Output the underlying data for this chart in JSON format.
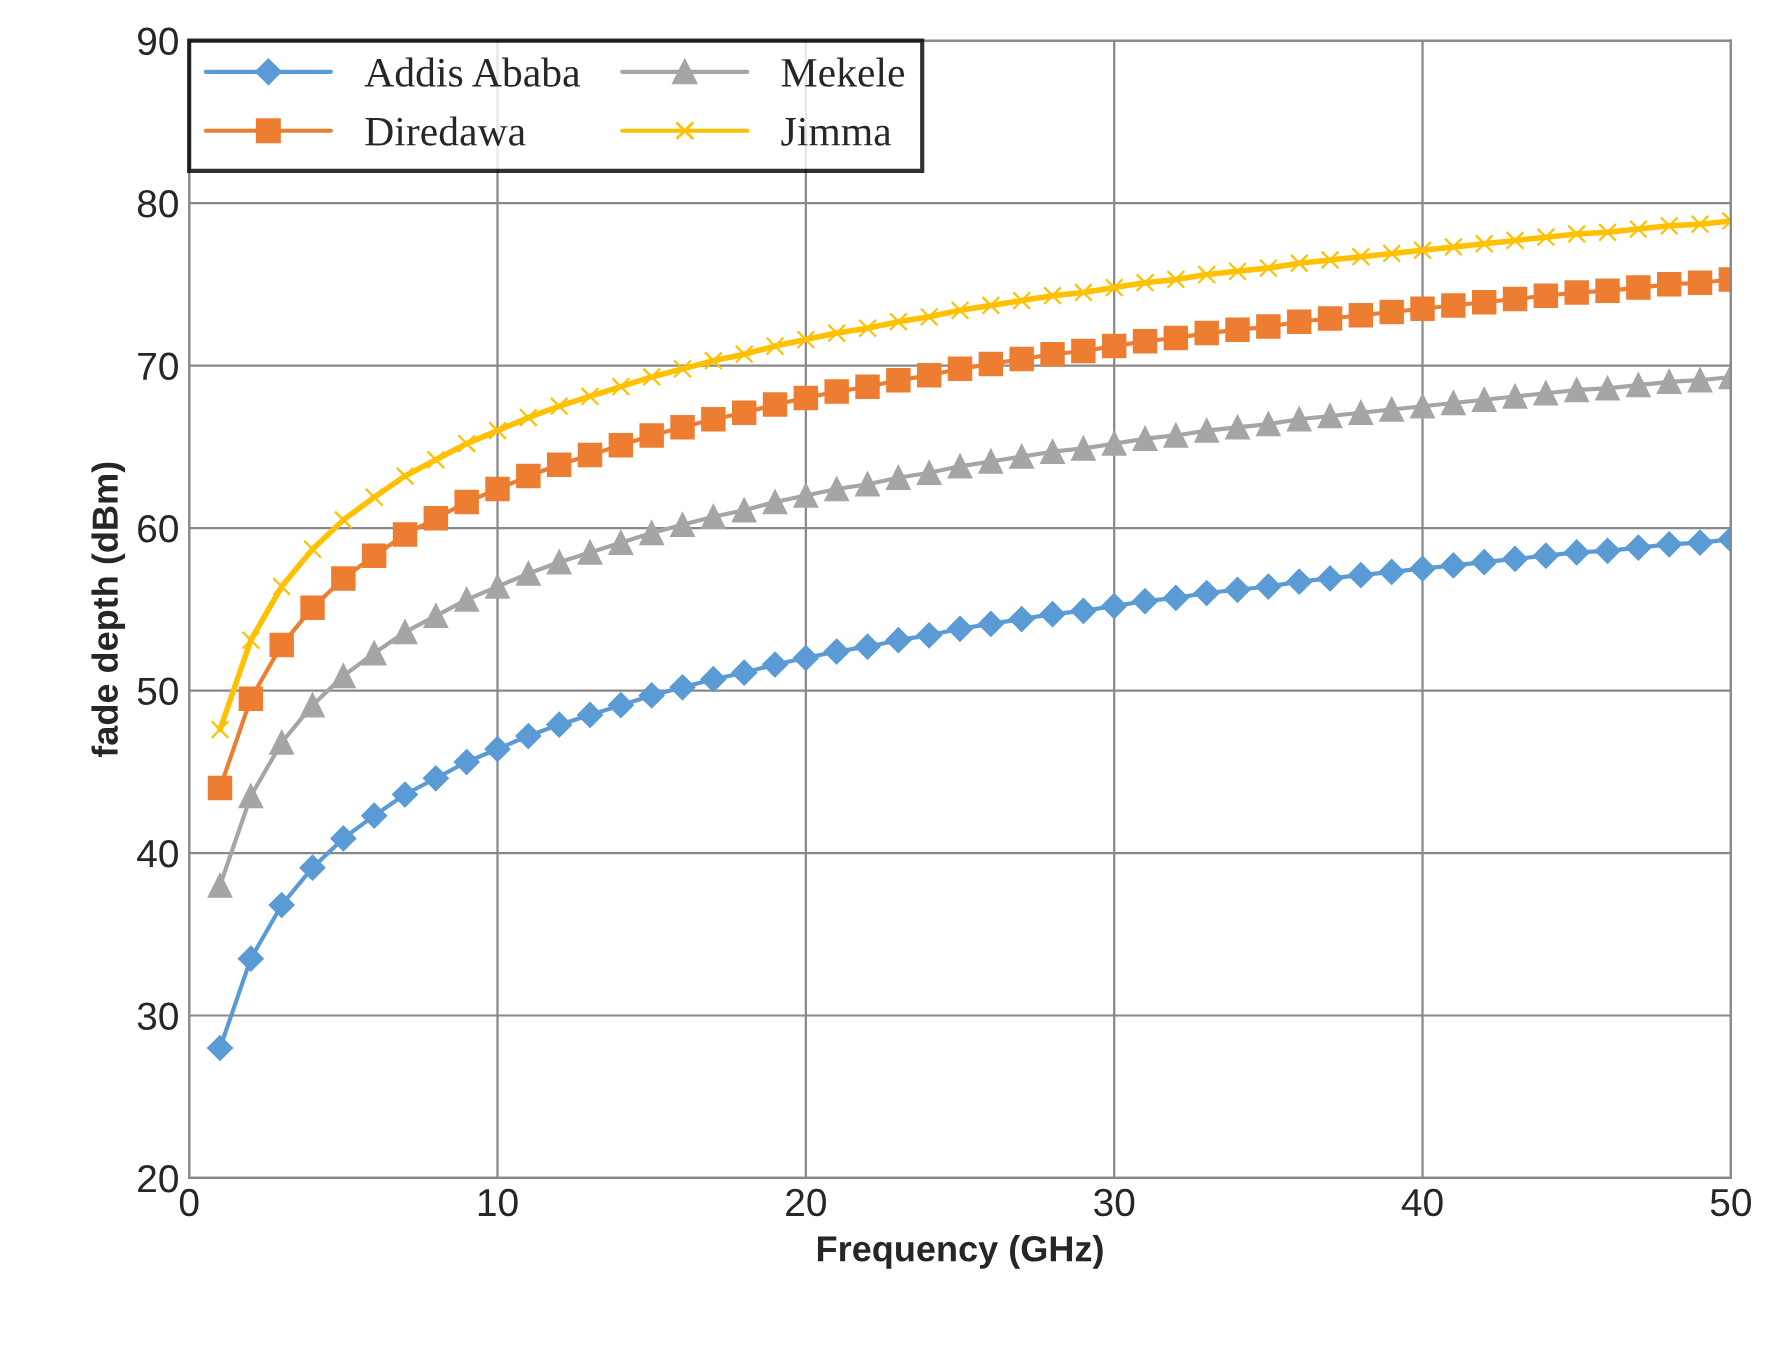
{
  "chart_data": {
    "type": "line",
    "xlabel": "Frequency (GHz)",
    "ylabel": "fade depth (dBm)",
    "x": [
      1,
      2,
      3,
      4,
      5,
      6,
      7,
      8,
      9,
      10,
      11,
      12,
      13,
      14,
      15,
      16,
      17,
      18,
      19,
      20,
      21,
      22,
      23,
      24,
      25,
      26,
      27,
      28,
      29,
      30,
      31,
      32,
      33,
      34,
      35,
      36,
      37,
      38,
      39,
      40,
      41,
      42,
      43,
      44,
      45,
      46,
      47,
      48,
      49,
      50
    ],
    "series": [
      {
        "name": "Addis Ababa",
        "color": "#5b9bd5",
        "marker": "diamond",
        "values": [
          28.0,
          33.5,
          36.8,
          39.1,
          40.9,
          42.3,
          43.6,
          44.6,
          45.6,
          46.4,
          47.2,
          47.9,
          48.5,
          49.1,
          49.7,
          50.2,
          50.7,
          51.1,
          51.6,
          52.0,
          52.4,
          52.7,
          53.1,
          53.4,
          53.8,
          54.1,
          54.4,
          54.7,
          54.9,
          55.2,
          55.5,
          55.7,
          56.0,
          56.2,
          56.4,
          56.7,
          56.9,
          57.1,
          57.3,
          57.5,
          57.7,
          57.9,
          58.1,
          58.3,
          58.5,
          58.6,
          58.8,
          59.0,
          59.1,
          59.3
        ]
      },
      {
        "name": "Diredawa",
        "color": "#ed7d31",
        "marker": "square",
        "values": [
          44.0,
          49.5,
          52.8,
          55.1,
          56.9,
          58.3,
          59.6,
          60.6,
          61.6,
          62.4,
          63.2,
          63.9,
          64.5,
          65.1,
          65.7,
          66.2,
          66.7,
          67.1,
          67.6,
          68.0,
          68.4,
          68.7,
          69.1,
          69.4,
          69.8,
          70.1,
          70.4,
          70.7,
          70.9,
          71.2,
          71.5,
          71.7,
          72.0,
          72.2,
          72.4,
          72.7,
          72.9,
          73.1,
          73.3,
          73.5,
          73.7,
          73.9,
          74.1,
          74.3,
          74.5,
          74.6,
          74.8,
          75.0,
          75.1,
          75.3
        ]
      },
      {
        "name": "Mekele",
        "color": "#a5a5a5",
        "marker": "triangle",
        "values": [
          38.0,
          43.5,
          46.8,
          49.1,
          50.9,
          52.3,
          53.6,
          54.6,
          55.6,
          56.4,
          57.2,
          57.9,
          58.5,
          59.1,
          59.7,
          60.2,
          60.7,
          61.1,
          61.6,
          62.0,
          62.4,
          62.7,
          63.1,
          63.4,
          63.8,
          64.1,
          64.4,
          64.7,
          64.9,
          65.2,
          65.5,
          65.7,
          66.0,
          66.2,
          66.4,
          66.7,
          66.9,
          67.1,
          67.3,
          67.5,
          67.7,
          67.9,
          68.1,
          68.3,
          68.5,
          68.6,
          68.8,
          69.0,
          69.1,
          69.3
        ]
      },
      {
        "name": "Jimma",
        "color": "#ffc000",
        "marker": "cross",
        "values": [
          47.6,
          53.1,
          56.4,
          58.7,
          60.5,
          61.9,
          63.2,
          64.2,
          65.2,
          66.0,
          66.8,
          67.5,
          68.1,
          68.7,
          69.3,
          69.8,
          70.3,
          70.7,
          71.2,
          71.6,
          72.0,
          72.3,
          72.7,
          73.0,
          73.4,
          73.7,
          74.0,
          74.3,
          74.5,
          74.8,
          75.1,
          75.3,
          75.6,
          75.8,
          76.0,
          76.3,
          76.5,
          76.7,
          76.9,
          77.1,
          77.3,
          77.5,
          77.7,
          77.9,
          78.1,
          78.2,
          78.4,
          78.6,
          78.7,
          78.9
        ]
      }
    ],
    "xlim": [
      0,
      50
    ],
    "xticks": [
      0,
      10,
      20,
      30,
      40,
      50
    ],
    "ylim": [
      20,
      90
    ],
    "yticks": [
      20,
      30,
      40,
      50,
      60,
      70,
      80,
      90
    ],
    "grid": true,
    "legend": "top left",
    "line_style": "solid"
  }
}
